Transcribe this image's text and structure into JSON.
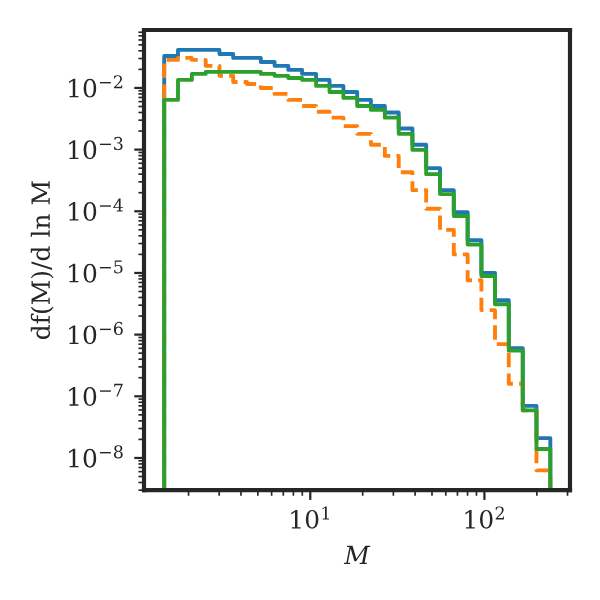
{
  "chart_data": {
    "type": "histogram",
    "xlabel": "M",
    "ylabel": "df(M)/d ln M",
    "log": "xy",
    "grid": false,
    "legend": false,
    "xlim": [
      1.11,
      310
    ],
    "ylim": [
      3e-09,
      0.087
    ],
    "xticks": [
      {
        "value": 10,
        "label": "10$^{1}$"
      },
      {
        "value": 100,
        "label": "10$^{2}$"
      }
    ],
    "yticks": [
      {
        "value": 1e-08,
        "label": "10$^{−8}$"
      },
      {
        "value": 1e-07,
        "label": "10$^{−7}$"
      },
      {
        "value": 1e-06,
        "label": "10$^{−6}$"
      },
      {
        "value": 1e-05,
        "label": "10$^{−5}$"
      },
      {
        "value": 0.0001,
        "label": "10$^{−4}$"
      },
      {
        "value": 0.001,
        "label": "10$^{−3}$"
      },
      {
        "value": 0.01,
        "label": "10$^{−2}$"
      }
    ],
    "bins": [
      1.45,
      1.74,
      2.09,
      2.51,
      3.01,
      3.61,
      4.33,
      5.2,
      6.24,
      7.48,
      8.98,
      10.8,
      12.9,
      15.5,
      18.6,
      22.3,
      26.8,
      32.2,
      38.6,
      46.3,
      55.6,
      66.7,
      80.1,
      96.1,
      115,
      138,
      166,
      199,
      239
    ],
    "series": [
      {
        "color": "#1f77b4",
        "line_style": "solid",
        "values": [
          0.033,
          0.0414,
          0.0414,
          0.0414,
          0.0356,
          0.0307,
          0.0307,
          0.0264,
          0.0228,
          0.0196,
          0.0169,
          0.0135,
          0.0108,
          0.0086,
          0.0064,
          0.0051,
          0.004,
          0.0022,
          0.0012,
          0.0005,
          0.00022,
          9.7e-05,
          3.4e-05,
          1e-05,
          3.6e-06,
          6e-07,
          7e-08,
          2.1e-08
        ]
      },
      {
        "color": "#ff7f0e",
        "line_style": "dashed",
        "values": [
          0.0285,
          0.0307,
          0.0285,
          0.0228,
          0.0157,
          0.0125,
          0.0116,
          0.01,
          0.008,
          0.0064,
          0.0051,
          0.0041,
          0.0033,
          0.0024,
          0.0018,
          0.0012,
          0.00079,
          0.00043,
          0.00022,
          0.00011,
          5e-05,
          2e-05,
          7.6e-06,
          2.5e-06,
          7e-07,
          1.6e-07,
          5.9e-08,
          6.3e-09
        ]
      },
      {
        "color": "#2ca02c",
        "line_style": "solid",
        "values": [
          0.0064,
          0.0135,
          0.0169,
          0.0182,
          0.0182,
          0.0182,
          0.0182,
          0.0169,
          0.0157,
          0.0145,
          0.0135,
          0.0108,
          0.0086,
          0.0069,
          0.0051,
          0.0044,
          0.0033,
          0.0018,
          0.00099,
          0.0004,
          0.00019,
          8.4e-05,
          2.9e-05,
          8.9e-06,
          3.1e-06,
          5.5e-07,
          5.9e-08,
          1.4e-08
        ]
      }
    ]
  }
}
